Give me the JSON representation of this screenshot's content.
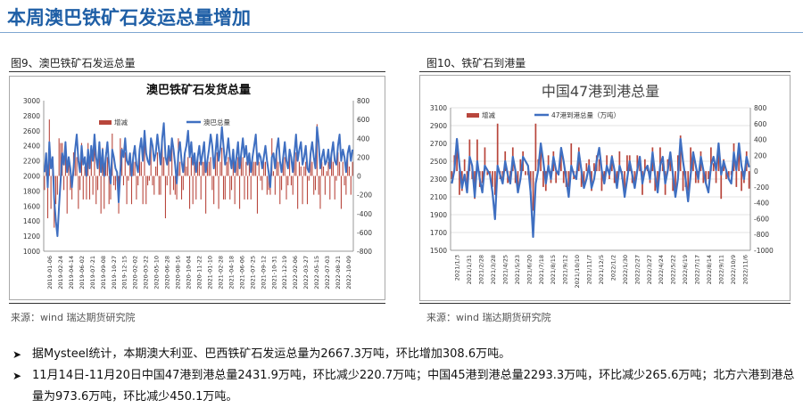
{
  "page_title": "本周澳巴铁矿石发运总量增加",
  "left_figure": {
    "caption": "图9、澳巴铁矿石发运总量",
    "source": "来源：wind   瑞达期货研究院"
  },
  "right_figure": {
    "caption": "图10、铁矿石到港量",
    "source": "来源：wind   瑞达期货研究院"
  },
  "bullets": [
    "据Mysteel统计，本期澳大利亚、巴西铁矿石发运总量为2667.3万吨，环比增加308.6万吨。",
    "11月14日-11月20日中国47港到港总量2431.9万吨，环比减少220.7万吨；中国45港到港总量2293.3万吨，环比减少265.6万吨；北方六港到港总量为973.6万吨，环比减少450.1万吨。"
  ],
  "colors": {
    "line": "#3f6fc1",
    "bar": "#b8463c"
  },
  "chart_data": [
    {
      "type": "bar+line",
      "title": "澳巴铁矿石发货总量",
      "legend": [
        "增减",
        "澳巴总量"
      ],
      "legend_position": "top-center",
      "y_left": {
        "ylim": [
          1000,
          3000
        ],
        "ticks": [
          1000,
          1200,
          1400,
          1600,
          1800,
          2000,
          2200,
          2400,
          2600,
          2800,
          3000
        ]
      },
      "y_right": {
        "ylim": [
          -800,
          800
        ],
        "ticks": [
          -800,
          -600,
          -400,
          -200,
          0,
          200,
          400,
          600,
          800
        ]
      },
      "x_ticks": [
        "2019-01-06",
        "2019-02-24",
        "2019-04-14",
        "2019-06-02",
        "2019-07-21",
        "2019-09-08",
        "2019-10-27",
        "2019-12-15",
        "2020-02-02",
        "2020-03-22",
        "2020-05-10",
        "2020-06-28",
        "2020-08-16",
        "2020-10-04",
        "2020-11-22",
        "2021-01-10",
        "2021-02-28",
        "2021-04-18",
        "2021-06-06",
        "2021-07-25",
        "2021-09-12",
        "2021-10-31",
        "2021-12-19",
        "2022-02-06",
        "2022-03-27",
        "2022-05-15",
        "2022-07-03",
        "2022-08-21",
        "2022-10-09"
      ],
      "series": [
        {
          "name": "澳巴总量",
          "kind": "line",
          "axis": "left",
          "values": [
            2050,
            2300,
            1850,
            2450,
            2100,
            2250,
            1700,
            1400,
            1200,
            1600,
            1950,
            2300,
            2150,
            2450,
            2050,
            2250,
            2100,
            1850,
            2100,
            2350,
            2550,
            2200,
            2050,
            2400,
            2150,
            2250,
            2000,
            2350,
            2100,
            2400,
            2200,
            2550,
            2250,
            2100,
            2450,
            2050,
            2350,
            2000,
            2250,
            2450,
            2150,
            1900,
            2350,
            2250,
            2100,
            2050,
            1650,
            2050,
            2350,
            2250,
            2500,
            2200,
            2150,
            2300,
            2000,
            2250,
            2400,
            2150,
            2050,
            2350,
            2500,
            2200,
            2600,
            2300,
            2200,
            2150,
            2500,
            2400,
            2200,
            2300,
            2550,
            2350,
            2150,
            2500,
            2700,
            2250,
            2150,
            2400,
            2200,
            2500,
            2350,
            2150,
            1900,
            2300,
            2450,
            2200,
            2050,
            2300,
            2400,
            2600,
            2250,
            2450,
            2150,
            2300,
            2050,
            2250,
            2400,
            2150,
            2300,
            2450,
            2050,
            2200,
            2350,
            2550,
            2400,
            2100,
            2300,
            2550,
            2200,
            2350,
            2650,
            2400,
            2150,
            2300,
            2500,
            2250,
            2100,
            2350,
            2050,
            2250,
            2450,
            2100,
            2300,
            2500,
            2250,
            2400,
            2150,
            2300,
            2050,
            2250,
            2400,
            2550,
            2150,
            2300,
            2250,
            2100,
            2250,
            2400,
            2200,
            2050,
            1850,
            2250,
            2300,
            2100,
            2350,
            2500,
            2200,
            2050,
            2250,
            2450,
            2200,
            2100,
            2350,
            2250,
            2050,
            2300,
            2550,
            2200,
            2350,
            2450,
            2150,
            2250,
            2400,
            2100,
            2050,
            2300,
            2450,
            2250,
            2100,
            2650,
            2450,
            2100,
            2250,
            2350,
            2150,
            2200,
            2350,
            2100,
            2300,
            2450,
            2200,
            2150,
            2400,
            2550,
            2200,
            2350,
            2250,
            2050,
            2300,
            2400,
            2200,
            2350
          ]
        },
        {
          "name": "增减",
          "kind": "bar",
          "axis": "right",
          "values": [
            -150,
            250,
            -450,
            600,
            -350,
            150,
            -550,
            -300,
            -200,
            400,
            350,
            350,
            -150,
            300,
            -400,
            200,
            -150,
            -250,
            250,
            250,
            200,
            -350,
            -150,
            350,
            -250,
            100,
            -250,
            350,
            -250,
            300,
            -200,
            350,
            -300,
            -150,
            350,
            -400,
            300,
            -350,
            250,
            200,
            -300,
            -250,
            450,
            -100,
            -150,
            -50,
            -400,
            400,
            300,
            -100,
            250,
            -300,
            -50,
            150,
            -300,
            250,
            150,
            -250,
            -100,
            300,
            150,
            -300,
            400,
            -300,
            -100,
            -50,
            350,
            -100,
            -200,
            100,
            250,
            -200,
            -200,
            350,
            200,
            -450,
            -100,
            250,
            -200,
            300,
            -150,
            -200,
            -250,
            400,
            150,
            -250,
            -150,
            250,
            100,
            200,
            -350,
            200,
            -300,
            150,
            -250,
            200,
            150,
            -250,
            150,
            150,
            -400,
            150,
            150,
            200,
            -150,
            -300,
            200,
            250,
            -350,
            150,
            300,
            -250,
            -250,
            150,
            200,
            -250,
            -150,
            250,
            -300,
            200,
            200,
            -350,
            200,
            200,
            -250,
            150,
            -250,
            150,
            -250,
            200,
            150,
            150,
            -400,
            150,
            -50,
            -150,
            150,
            150,
            -200,
            -150,
            -200,
            400,
            50,
            -200,
            250,
            150,
            -300,
            -150,
            200,
            200,
            -250,
            -100,
            250,
            -100,
            -200,
            250,
            250,
            -350,
            150,
            100,
            -300,
            100,
            150,
            -300,
            -50,
            250,
            150,
            -200,
            -150,
            550,
            -200,
            -350,
            150,
            100,
            -200,
            50,
            150,
            -250,
            200,
            150,
            -250,
            -50,
            250,
            150,
            -350,
            150,
            -100,
            -200,
            250,
            100,
            -200,
            150
          ]
        }
      ]
    },
    {
      "type": "bar+line",
      "title": "中国47港到港总量",
      "legend": [
        "增减",
        "47港到港总量（万吨）"
      ],
      "legend_position": "top-left",
      "y_left": {
        "ylim": [
          1500,
          3100
        ],
        "ticks": [
          1500,
          1700,
          1900,
          2100,
          2300,
          2500,
          2700,
          2900,
          3100
        ]
      },
      "y_right": {
        "ylim": [
          -1000,
          800
        ],
        "ticks": [
          -1000,
          -800,
          -600,
          -400,
          -200,
          0,
          200,
          400,
          600,
          800
        ]
      },
      "x_ticks": [
        "2021/1/3",
        "2021/1/31",
        "2021/2/28",
        "2021/3/28",
        "2021/4/25",
        "2021/5/23",
        "2021/6/20",
        "2021/7/18",
        "2021/8/15",
        "2021/9/12",
        "2021/10/10",
        "2021/11/7",
        "2021/12/5",
        "2022/1/2",
        "2022/1/30",
        "2022/2/27",
        "2022/3/27",
        "2022/4/24",
        "2022/5/22",
        "2022/6/19",
        "2022/7/17",
        "2022/8/14",
        "2022/9/11",
        "2022/10/9",
        "2022/11/6"
      ],
      "series": [
        {
          "name": "47港到港总量（万吨）",
          "kind": "line",
          "axis": "left",
          "values": [
            2250,
            2400,
            2750,
            2450,
            2200,
            2350,
            2150,
            2550,
            2450,
            2100,
            2500,
            2300,
            2150,
            2450,
            2400,
            2350,
            2150,
            1850,
            2450,
            2350,
            2250,
            2500,
            2350,
            2250,
            2550,
            2400,
            2150,
            2300,
            2550,
            2500,
            2450,
            2150,
            1650,
            2250,
            2400,
            2700,
            2500,
            2250,
            2450,
            2300,
            2550,
            2400,
            2350,
            2650,
            2500,
            2300,
            2100,
            2450,
            2350,
            2300,
            2600,
            2400,
            2200,
            2300,
            2450,
            2200,
            2300,
            2500,
            2650,
            2400,
            2250,
            2450,
            2350,
            2550,
            2400,
            2200,
            2450,
            2350,
            2100,
            2300,
            2500,
            2350,
            2200,
            2400,
            2550,
            2250,
            2400,
            2450,
            2300,
            2600,
            2350,
            2150,
            2450,
            2550,
            2250,
            2400,
            2600,
            2350,
            2100,
            2300,
            2750,
            2500,
            2300,
            2050,
            2350,
            2600,
            2450,
            2300,
            2550,
            2400,
            2250,
            2150,
            2450,
            2550,
            2400,
            2700,
            2350,
            2500,
            2400,
            2300,
            2250,
            2600,
            2400,
            2700,
            2450,
            2300,
            2550,
            2432
          ]
        },
        {
          "name": "增减",
          "kind": "bar",
          "axis": "right",
          "values": [
            -100,
            200,
            350,
            -300,
            -250,
            150,
            -200,
            400,
            -100,
            -350,
            400,
            -200,
            -150,
            300,
            -50,
            -50,
            -200,
            -300,
            600,
            -100,
            -100,
            250,
            -150,
            -100,
            300,
            -150,
            -250,
            150,
            250,
            -50,
            -50,
            -300,
            -500,
            600,
            150,
            300,
            -200,
            -250,
            200,
            -150,
            250,
            -150,
            -50,
            300,
            -150,
            -200,
            -200,
            350,
            -100,
            -50,
            300,
            -200,
            -200,
            100,
            150,
            -250,
            100,
            200,
            150,
            -250,
            -150,
            200,
            -100,
            200,
            -150,
            -200,
            250,
            -100,
            -250,
            200,
            200,
            -150,
            -150,
            200,
            150,
            -300,
            150,
            50,
            -150,
            300,
            -250,
            -200,
            300,
            100,
            -300,
            150,
            200,
            -250,
            -250,
            200,
            450,
            -250,
            -200,
            -250,
            300,
            250,
            -150,
            -150,
            250,
            -150,
            -150,
            -100,
            300,
            100,
            -150,
            300,
            -350,
            150,
            -100,
            -100,
            -50,
            350,
            -200,
            300,
            -250,
            -150,
            250,
            -221
          ]
        }
      ]
    }
  ]
}
